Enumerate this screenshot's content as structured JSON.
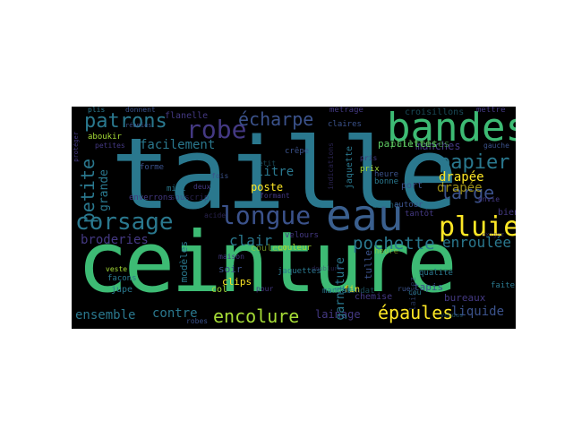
{
  "palette": {
    "green": "#3dbb74",
    "teal": "#2a788e",
    "steel": "#3a5f8e",
    "blue": "#3b528b",
    "purple": "#482878",
    "indigo": "#443983",
    "mint": "#5ec962",
    "lime": "#a5db36",
    "yellow": "#fde725",
    "sea": "#1f9e89",
    "cyan": "#21918c",
    "background": "#000000"
  },
  "words": {
    "taille": "taille",
    "ceinture": "ceinture",
    "bandes": "bandes",
    "eau": "eau",
    "longue": "longue",
    "corsage": "corsage",
    "robe": "robe",
    "patrons": "patrons",
    "echarpe": "écharpe",
    "pluie": "pluie",
    "papier": "papier",
    "pochette": "pochette",
    "encolure": "encolure",
    "epaules": "épaules",
    "petite": "petite",
    "large": "large",
    "drapee": "drapée",
    "clair": "clair",
    "broderies": "broderies",
    "enroulee": "enroulée",
    "ensemble": "ensemble",
    "contre": "contre",
    "liquide": "liquide",
    "lainage": "lainage",
    "garniture": "garniture",
    "facilement": "facilement",
    "manches": "manches",
    "grande": "grande",
    "litre": "litre",
    "poste": "poste",
    "paillettes": "paillettes",
    "croisillons": "croisillons",
    "mettre": "mettre",
    "jaquette": "jaquette",
    "fin": "fin",
    "tulle": "tulle",
    "tapis": "tapis",
    "chemise": "chemise",
    "bureaux": "bureaux",
    "bien": "bien",
    "faites": "faites",
    "clips": "clips",
    "soir": "soir",
    "jupe": "jupe",
    "col": "col",
    "couleur": "couleur",
    "modeles": "modèles",
    "fois": "fois",
    "bonne": "bonne",
    "port": "port",
    "prix": "prix",
    "heure": "heure",
    "metrage": "métrage",
    "plis": "plis",
    "donnent": "donnent",
    "flanelle": "flanelle",
    "aboukir": "aboukir",
    "petites": "petites",
    "forme": "forme",
    "velours": "velours",
    "mandat": "mandat",
    "qualite": "qualité",
    "laissez": "laissez",
    "jaquettes": "jaquettes",
    "facons": "façons",
    "veste": "veste",
    "robes": "robes",
    "midi": "midi",
    "envie": "envie",
    "gauche": "gauche",
    "autour": "autour",
    "tantot": "tantôt",
    "crepe": "crêpe",
    "maison": "maison",
    "petit": "petit",
    "indications": "indications",
    "claires": "claires",
    "formant": "formant",
    "enverrons": "enverrons",
    "souscrip": "souscrip",
    "acide": "acide",
    "exigez": "exigez",
    "reunies": "réunies",
    "proteger": "protéger",
    "vendus": "vendus",
    "rue": "rue",
    "doublure": "doublure",
    "cou": "cou",
    "pris": "pris",
    "pour": "pour",
    "deux": "deux"
  }
}
